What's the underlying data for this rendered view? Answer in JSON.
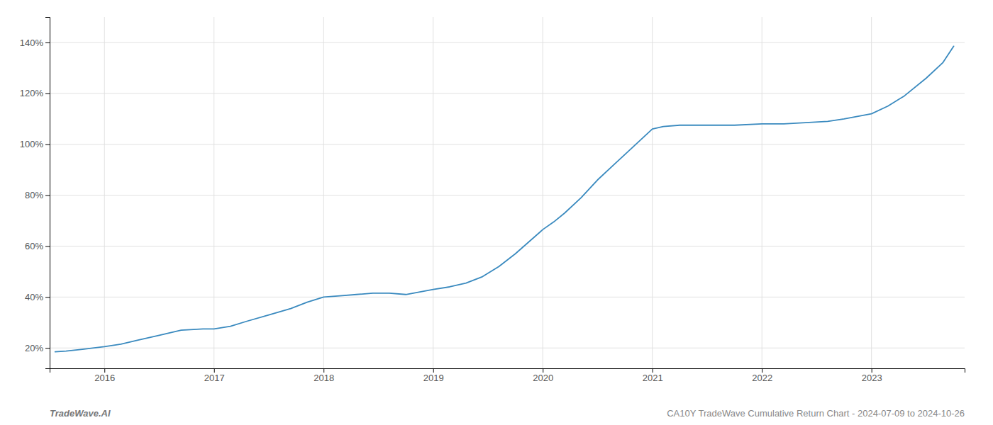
{
  "chart_data": {
    "type": "line",
    "title": "CA10Y TradeWave Cumulative Return Chart - 2024-07-09 to 2024-10-26",
    "annotations": [
      "TradeWave.AI"
    ],
    "color": "#3a8abf",
    "grid": true,
    "x": [
      2015.55,
      2015.65,
      2015.8,
      2016.0,
      2016.15,
      2016.3,
      2016.5,
      2016.7,
      2016.9,
      2017.0,
      2017.15,
      2017.3,
      2017.5,
      2017.7,
      2017.85,
      2018.0,
      2018.15,
      2018.3,
      2018.45,
      2018.6,
      2018.75,
      2019.0,
      2019.15,
      2019.3,
      2019.45,
      2019.6,
      2019.75,
      2020.0,
      2020.1,
      2020.2,
      2020.35,
      2020.5,
      2020.65,
      2020.8,
      2021.0,
      2021.1,
      2021.25,
      2021.5,
      2021.75,
      2022.0,
      2022.2,
      2022.4,
      2022.6,
      2022.75,
      2023.0,
      2023.15,
      2023.3,
      2023.5,
      2023.65,
      2023.75
    ],
    "values": [
      18.5,
      18.8,
      19.5,
      20.5,
      21.5,
      23.0,
      25.0,
      27.0,
      27.5,
      27.5,
      28.5,
      30.5,
      33.0,
      35.5,
      38.0,
      40.0,
      40.5,
      41.0,
      41.5,
      41.5,
      41.0,
      43.0,
      44.0,
      45.5,
      48.0,
      52.0,
      57.0,
      66.5,
      69.5,
      73.0,
      79.0,
      86.0,
      92.0,
      98.0,
      106.0,
      107.0,
      107.5,
      107.5,
      107.5,
      108.0,
      108.0,
      108.5,
      109.0,
      110.0,
      112.0,
      115.0,
      119.0,
      126.0,
      132.0,
      138.5
    ],
    "xlim": [
      2015.5,
      2023.85
    ],
    "xticks": [
      2016,
      2017,
      2018,
      2019,
      2020,
      2021,
      2022,
      2023
    ],
    "ylim": [
      12,
      150
    ],
    "yticks": [
      {
        "value": 20,
        "label": "20%"
      },
      {
        "value": 40,
        "label": "40%"
      },
      {
        "value": 60,
        "label": "60%"
      },
      {
        "value": 80,
        "label": "80%"
      },
      {
        "value": 100,
        "label": "100%"
      },
      {
        "value": 120,
        "label": "120%"
      },
      {
        "value": 140,
        "label": "140%"
      }
    ]
  }
}
